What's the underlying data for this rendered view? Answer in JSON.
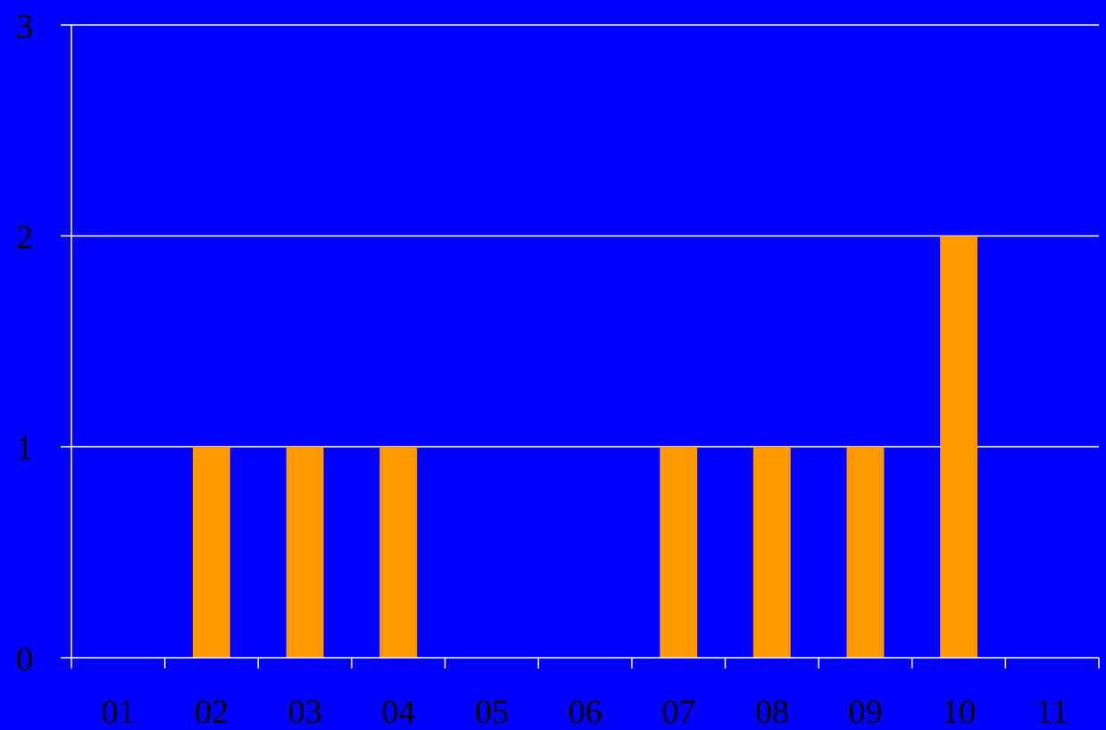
{
  "chart_data": {
    "type": "bar",
    "categories": [
      "01",
      "02",
      "03",
      "04",
      "05",
      "06",
      "07",
      "08",
      "09",
      "10",
      "11"
    ],
    "values": [
      0,
      1,
      1,
      1,
      0,
      0,
      1,
      1,
      1,
      2,
      0
    ],
    "ylim": [
      0,
      3
    ],
    "yticks": [
      0,
      1,
      2,
      3
    ],
    "title": "",
    "xlabel": "",
    "ylabel": "",
    "grid": true,
    "legend": "none"
  },
  "colors": {
    "background": "#0000FF",
    "bar": "#FF9900",
    "gridline": "#FFFFFF",
    "axis": "#FFFFFF",
    "text": "#000000"
  }
}
